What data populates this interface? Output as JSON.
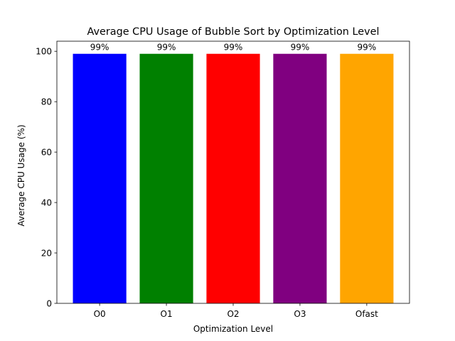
{
  "chart_data": {
    "type": "bar",
    "title": "Average CPU Usage of Bubble Sort by Optimization Level",
    "xlabel": "Optimization Level",
    "ylabel": "Average CPU Usage (%)",
    "categories": [
      "O0",
      "O1",
      "O2",
      "O3",
      "Ofast"
    ],
    "values": [
      99,
      99,
      99,
      99,
      99
    ],
    "data_labels": [
      "99%",
      "99%",
      "99%",
      "99%",
      "99%"
    ],
    "colors": [
      "#0000ff",
      "#008000",
      "#ff0000",
      "#800080",
      "#ffa500"
    ],
    "ylim": [
      0,
      104
    ],
    "yticks": [
      0,
      20,
      40,
      60,
      80,
      100
    ],
    "grid": false,
    "legend": "none"
  }
}
